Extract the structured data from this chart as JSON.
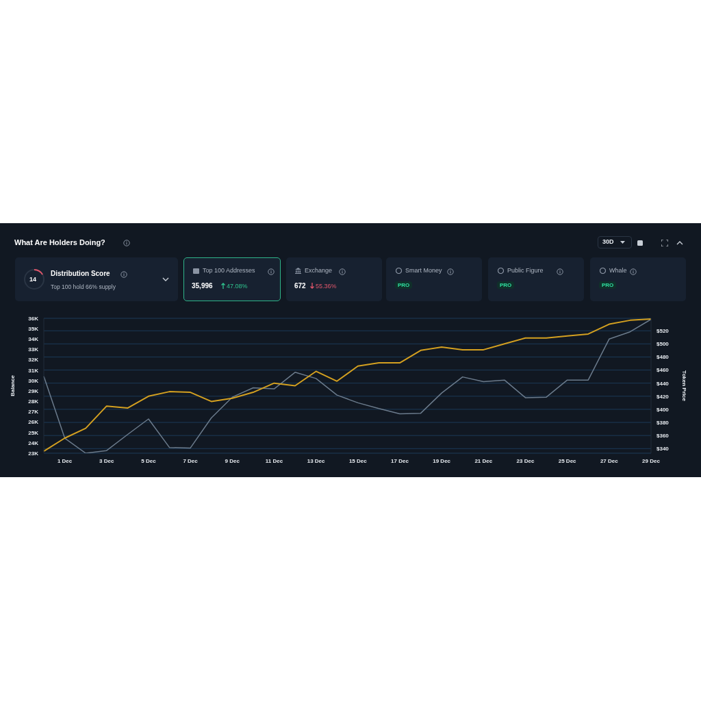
{
  "chart_data": {
    "type": "line",
    "title": "What Are Holders Doing?",
    "ylabel": "Balance",
    "y2label": "Token Price",
    "categories": [
      null,
      "1 Dec",
      null,
      "3 Dec",
      null,
      "5 Dec",
      null,
      "7 Dec",
      null,
      "9 Dec",
      null,
      "11 Dec",
      null,
      "13 Dec",
      null,
      "15 Dec",
      null,
      "17 Dec",
      null,
      "19 Dec",
      null,
      "21 Dec",
      null,
      "23 Dec",
      null,
      "25 Dec",
      null,
      "27 Dec",
      null,
      "29 Dec"
    ],
    "series": [
      {
        "color": "#6b7b8c",
        "values": [
          30400,
          24450,
          23000,
          23250,
          24800,
          26300,
          23550,
          23500,
          26400,
          28400,
          29300,
          29200,
          30800,
          30200,
          28600,
          27860,
          27300,
          26800,
          26850,
          28800,
          30350,
          29900,
          30050,
          28350,
          28400,
          30050,
          30050,
          34000,
          34700,
          35900
        ]
      },
      {
        "color": "#d4a020",
        "axis": "y2",
        "values": [
          336,
          356,
          371,
          405,
          402,
          420,
          427,
          426,
          412,
          417,
          426,
          440,
          436,
          458,
          443,
          466,
          471,
          471,
          490,
          495,
          491,
          491,
          500,
          509,
          509,
          512,
          515,
          530,
          536,
          538
        ]
      }
    ],
    "ylim": [
      23000,
      36000
    ],
    "yticks": [
      {
        "value": 23000,
        "label": "23K"
      },
      {
        "value": 24000,
        "label": "24K"
      },
      {
        "value": 25000,
        "label": "25K"
      },
      {
        "value": 26000,
        "label": "26K"
      },
      {
        "value": 27000,
        "label": "27K"
      },
      {
        "value": 28000,
        "label": "28K"
      },
      {
        "value": 29000,
        "label": "29K"
      },
      {
        "value": 30000,
        "label": "30K"
      },
      {
        "value": 31000,
        "label": "31K"
      },
      {
        "value": 32000,
        "label": "32K"
      },
      {
        "value": 33000,
        "label": "33K"
      },
      {
        "value": 34000,
        "label": "34K"
      },
      {
        "value": 35000,
        "label": "35K"
      },
      {
        "value": 36000,
        "label": "36K"
      }
    ],
    "y2lim": [
      333,
      539
    ],
    "y2ticks": [
      {
        "value": 340,
        "label": "$340"
      },
      {
        "value": 360,
        "label": "$360"
      },
      {
        "value": 380,
        "label": "$380"
      },
      {
        "value": 400,
        "label": "$400"
      },
      {
        "value": 420,
        "label": "$420"
      },
      {
        "value": 440,
        "label": "$440"
      },
      {
        "value": 460,
        "label": "$460"
      },
      {
        "value": 480,
        "label": "$480"
      },
      {
        "value": 500,
        "label": "$500"
      },
      {
        "value": 520,
        "label": "$520"
      }
    ],
    "grid": "y2",
    "legend": false,
    "marker": "none",
    "line_style": "solid",
    "annotations": [
      "14",
      "Distribution Score",
      "Top 100 hold 66% supply",
      "Top 100 Addresses",
      "35,996",
      "47.08%",
      "Exchange",
      "672",
      "55.36%",
      "Smart Money",
      "PRO",
      "Public Figure",
      "PRO",
      "Whale",
      "PRO",
      "30D"
    ]
  }
}
